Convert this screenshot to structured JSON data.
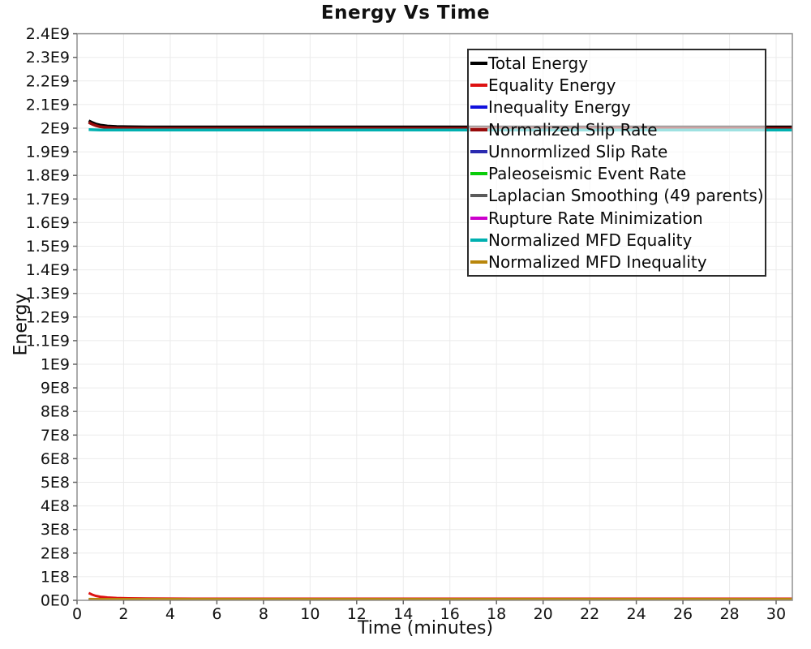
{
  "page": {
    "background": "#ffffff"
  },
  "colors": {
    "grid": "#ebebeb",
    "plot_border": "#909090",
    "tick_mark": "#666666",
    "tick_text": "#111111",
    "legend_border": "#2b2b2b",
    "legend_background": "rgba(255,255,255,0.62)"
  },
  "chart_data": {
    "type": "line",
    "title": "Energy Vs Time",
    "xlabel": "Time (minutes)",
    "ylabel": "Energy",
    "xlim": [
      0,
      30.7
    ],
    "ylim": [
      0,
      2400000000
    ],
    "grid": true,
    "legend_position": "top-right-inside",
    "x_ticks": [
      0,
      2,
      4,
      6,
      8,
      10,
      12,
      14,
      16,
      18,
      20,
      22,
      24,
      26,
      28,
      30
    ],
    "y_ticks": {
      "step": 100000000,
      "labels": [
        "0E0",
        "1E8",
        "2E8",
        "3E8",
        "4E8",
        "5E8",
        "6E8",
        "7E8",
        "8E8",
        "9E8",
        "1E9",
        "1.1E9",
        "1.2E9",
        "1.3E9",
        "1.4E9",
        "1.5E9",
        "1.6E9",
        "1.7E9",
        "1.8E9",
        "1.9E9",
        "2E9",
        "2.1E9",
        "2.2E9",
        "2.3E9",
        "2.4E9"
      ]
    },
    "series": [
      {
        "name": "Total Energy",
        "color": "#000000",
        "width": 3.5,
        "x": [
          0.5,
          0.65,
          0.8,
          1.0,
          1.3,
          1.7,
          2.2,
          3,
          4,
          6,
          10,
          20,
          30.7
        ],
        "y": [
          2031000000,
          2024000000,
          2018000000,
          2013000000,
          2009000000,
          2007000000,
          2006000000,
          2005000000,
          2005000000,
          2005000000,
          2005000000,
          2005000000,
          2005000000
        ]
      },
      {
        "name": "Equality Energy",
        "color": "#dd1111",
        "width": 3,
        "x": [
          0.5,
          0.65,
          0.8,
          1.0,
          1.3,
          1.7,
          2.2,
          3,
          5,
          10,
          20,
          30.7
        ],
        "y": [
          31000000,
          24000000,
          19000000,
          15000000,
          12000000,
          10000000,
          8500000,
          7500000,
          7000000,
          7000000,
          7000000,
          7000000
        ]
      },
      {
        "name": "Inequality Energy",
        "color": "#1111dd",
        "width": 2.5,
        "x": [
          0.5,
          30.7
        ],
        "y": [
          2200000,
          2200000
        ]
      },
      {
        "name": "Normalized Slip Rate",
        "color": "#970b0b",
        "width": 3.5,
        "x": [
          0.5,
          0.65,
          0.8,
          1.0,
          1.3,
          1.7,
          2.2,
          3,
          4,
          6,
          10,
          20,
          30.7
        ],
        "y": [
          2024000000,
          2017000000,
          2011000000,
          2006000000,
          2003000000,
          2001000000,
          2000000000,
          1999500000,
          1999000000,
          1999000000,
          1999000000,
          1999000000,
          1999000000
        ]
      },
      {
        "name": "Unnormlized Slip Rate",
        "color": "#2a2ab0",
        "width": 2.5,
        "x": [
          0.5,
          30.7
        ],
        "y": [
          3200000,
          3200000
        ]
      },
      {
        "name": "Paleoseismic Event Rate",
        "color": "#0acc0a",
        "width": 2.5,
        "x": [
          0.5,
          1,
          2,
          30.7
        ],
        "y": [
          5500000,
          5000000,
          4600000,
          4600000
        ]
      },
      {
        "name": "Laplacian Smoothing (49 parents)",
        "color": "#5a5a5a",
        "width": 2.5,
        "x": [
          0.5,
          30.7
        ],
        "y": [
          1400000,
          1400000
        ]
      },
      {
        "name": "Rupture Rate Minimization",
        "color": "#cc00cc",
        "width": 2.5,
        "x": [
          0.5,
          30.7
        ],
        "y": [
          700000,
          700000
        ]
      },
      {
        "name": "Normalized MFD Equality",
        "color": "#00b0b0",
        "width": 3.5,
        "x": [
          0.5,
          1,
          2,
          30.7
        ],
        "y": [
          1994000000,
          1992500000,
          1992000000,
          1992000000
        ]
      },
      {
        "name": "Normalized MFD Inequality",
        "color": "#b8860b",
        "width": 2.5,
        "x": [
          0.5,
          1,
          30.7
        ],
        "y": [
          6500000,
          6200000,
          6200000
        ]
      }
    ]
  }
}
